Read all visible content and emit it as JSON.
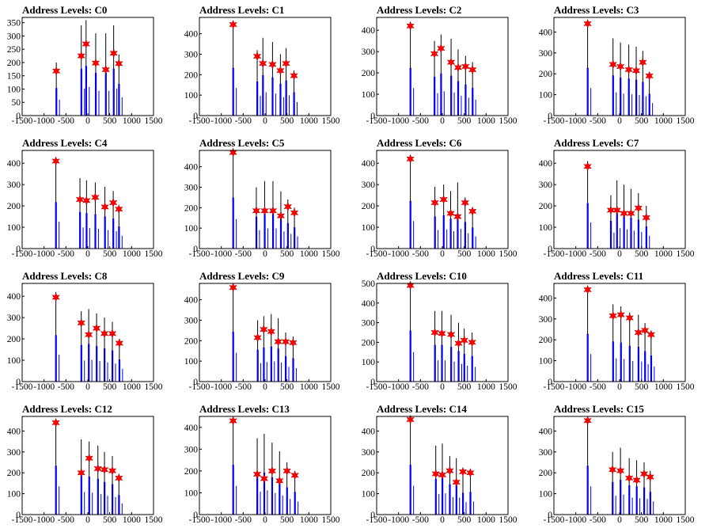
{
  "figure": {
    "background": "#ffffff"
  },
  "chart_data": [
    {
      "type": "bar",
      "title": "Address Levels: C0",
      "xlim": [
        -1500,
        1500
      ],
      "ylim": [
        0,
        370
      ],
      "xticks": [
        -1500,
        -1000,
        -500,
        0,
        500,
        1000,
        1500
      ],
      "yticks": [
        0,
        50,
        100,
        150,
        200,
        250,
        300,
        350
      ],
      "bar_positions": [
        -720,
        -150,
        -40,
        180,
        410,
        590,
        710
      ],
      "bar_heights": [
        200,
        340,
        360,
        310,
        310,
        340,
        230
      ],
      "marker_positions": [
        -720,
        -150,
        -40,
        180,
        410,
        590,
        710
      ],
      "marker_values": [
        168,
        225,
        270,
        198,
        173,
        235,
        196
      ]
    },
    {
      "type": "bar",
      "title": "Address Levels: C1",
      "xlim": [
        -1500,
        1500
      ],
      "ylim": [
        0,
        480
      ],
      "xticks": [
        -1500,
        -1000,
        -500,
        0,
        500,
        1000,
        1500
      ],
      "yticks": [
        0,
        100,
        200,
        300,
        400
      ],
      "bar_positions": [
        -730,
        -180,
        -50,
        170,
        350,
        480,
        660
      ],
      "bar_heights": [
        450,
        320,
        380,
        360,
        300,
        330,
        220
      ],
      "marker_positions": [
        -730,
        -180,
        -50,
        170,
        350,
        480,
        660
      ],
      "marker_values": [
        445,
        290,
        255,
        250,
        220,
        255,
        195
      ]
    },
    {
      "type": "bar",
      "title": "Address Levels: C2",
      "xlim": [
        -1500,
        1500
      ],
      "ylim": [
        0,
        460
      ],
      "xticks": [
        -1500,
        -1000,
        -500,
        0,
        500,
        1000,
        1500
      ],
      "yticks": [
        0,
        100,
        200,
        300,
        400
      ],
      "bar_positions": [
        -730,
        -180,
        -30,
        200,
        360,
        530,
        690
      ],
      "bar_heights": [
        430,
        350,
        380,
        360,
        310,
        280,
        250
      ],
      "marker_positions": [
        -730,
        -180,
        -30,
        200,
        360,
        530,
        690
      ],
      "marker_values": [
        420,
        290,
        315,
        250,
        225,
        230,
        215
      ]
    },
    {
      "type": "bar",
      "title": "Address Levels: C3",
      "xlim": [
        -1500,
        1500
      ],
      "ylim": [
        0,
        470
      ],
      "xticks": [
        -1500,
        -1000,
        -500,
        0,
        500,
        1000,
        1500
      ],
      "yticks": [
        0,
        100,
        200,
        300,
        400
      ],
      "bar_positions": [
        -730,
        -150,
        20,
        210,
        380,
        530,
        680
      ],
      "bar_heights": [
        440,
        370,
        350,
        340,
        330,
        310,
        200
      ],
      "marker_positions": [
        -730,
        -150,
        20,
        210,
        380,
        530,
        680
      ],
      "marker_values": [
        440,
        245,
        235,
        220,
        215,
        255,
        190
      ]
    },
    {
      "type": "bar",
      "title": "Address Levels: C4",
      "xlim": [
        -1500,
        1500
      ],
      "ylim": [
        0,
        460
      ],
      "xticks": [
        -1500,
        -1000,
        -500,
        0,
        500,
        1000,
        1500
      ],
      "yticks": [
        0,
        100,
        200,
        300,
        400
      ],
      "bar_positions": [
        -730,
        -180,
        -30,
        170,
        390,
        580,
        710
      ],
      "bar_heights": [
        420,
        330,
        320,
        310,
        290,
        270,
        200
      ],
      "marker_positions": [
        -730,
        -180,
        -30,
        170,
        390,
        580,
        710
      ],
      "marker_values": [
        410,
        230,
        225,
        240,
        195,
        215,
        185
      ]
    },
    {
      "type": "bar",
      "title": "Address Levels: C5",
      "xlim": [
        -1500,
        1500
      ],
      "ylim": [
        0,
        480
      ],
      "xticks": [
        -1500,
        -1000,
        -500,
        0,
        500,
        1000,
        1500
      ],
      "yticks": [
        0,
        100,
        200,
        300,
        400
      ],
      "bar_positions": [
        -730,
        -200,
        -10,
        180,
        360,
        520,
        670
      ],
      "bar_heights": [
        480,
        300,
        330,
        330,
        280,
        240,
        200
      ],
      "marker_positions": [
        -730,
        -200,
        -10,
        180,
        360,
        520,
        670
      ],
      "marker_values": [
        470,
        185,
        185,
        185,
        160,
        205,
        175
      ]
    },
    {
      "type": "bar",
      "title": "Address Levels: C6",
      "xlim": [
        -1500,
        1500
      ],
      "ylim": [
        0,
        460
      ],
      "xticks": [
        -1500,
        -1000,
        -500,
        0,
        500,
        1000,
        1500
      ],
      "yticks": [
        0,
        100,
        200,
        300,
        400
      ],
      "bar_positions": [
        -730,
        -170,
        30,
        190,
        350,
        520,
        690
      ],
      "bar_heights": [
        430,
        290,
        300,
        270,
        310,
        240,
        190
      ],
      "marker_positions": [
        -730,
        -170,
        30,
        190,
        350,
        520,
        690
      ],
      "marker_values": [
        420,
        215,
        230,
        165,
        150,
        215,
        175
      ]
    },
    {
      "type": "bar",
      "title": "Address Levels: C7",
      "xlim": [
        -1500,
        1500
      ],
      "ylim": [
        0,
        460
      ],
      "xticks": [
        -1500,
        -1000,
        -500,
        0,
        500,
        1000,
        1500
      ],
      "yticks": [
        0,
        100,
        200,
        300,
        400
      ],
      "bar_positions": [
        -730,
        -200,
        -60,
        100,
        260,
        430,
        610
      ],
      "bar_heights": [
        410,
        250,
        320,
        300,
        280,
        260,
        200
      ],
      "marker_positions": [
        -730,
        -200,
        -60,
        100,
        260,
        430,
        610
      ],
      "marker_values": [
        385,
        180,
        180,
        165,
        165,
        190,
        145
      ]
    },
    {
      "type": "bar",
      "title": "Address Levels: C8",
      "xlim": [
        -1500,
        1500
      ],
      "ylim": [
        0,
        460
      ],
      "xticks": [
        -1500,
        -1000,
        -500,
        0,
        500,
        1000,
        1500
      ],
      "yticks": [
        0,
        100,
        200,
        300,
        400
      ],
      "bar_positions": [
        -730,
        -150,
        20,
        200,
        380,
        560,
        720
      ],
      "bar_heights": [
        420,
        330,
        340,
        320,
        300,
        280,
        200
      ],
      "marker_positions": [
        -730,
        -150,
        20,
        200,
        380,
        560,
        720
      ],
      "marker_values": [
        395,
        275,
        220,
        250,
        225,
        225,
        180
      ]
    },
    {
      "type": "bar",
      "title": "Address Levels: C9",
      "xlim": [
        -1500,
        1500
      ],
      "ylim": [
        0,
        480
      ],
      "xticks": [
        -1500,
        -1000,
        -500,
        0,
        500,
        1000,
        1500
      ],
      "yticks": [
        0,
        100,
        200,
        300,
        400
      ],
      "bar_positions": [
        -730,
        -170,
        -30,
        140,
        300,
        470,
        640
      ],
      "bar_heights": [
        470,
        300,
        320,
        330,
        310,
        240,
        220
      ],
      "marker_positions": [
        -730,
        -170,
        -30,
        140,
        300,
        470,
        640
      ],
      "marker_values": [
        460,
        215,
        255,
        245,
        195,
        195,
        190
      ]
    },
    {
      "type": "bar",
      "title": "Address Levels: C10",
      "xlim": [
        -1500,
        1500
      ],
      "ylim": [
        0,
        500
      ],
      "xticks": [
        -1500,
        -1000,
        -500,
        0,
        500,
        1000,
        1500
      ],
      "yticks": [
        0,
        100,
        200,
        300,
        400,
        500
      ],
      "bar_positions": [
        -730,
        -170,
        -10,
        200,
        370,
        500,
        680
      ],
      "bar_heights": [
        500,
        360,
        360,
        340,
        300,
        270,
        250
      ],
      "marker_positions": [
        -730,
        -170,
        -10,
        200,
        370,
        500,
        680
      ],
      "marker_values": [
        490,
        250,
        245,
        240,
        195,
        210,
        200
      ]
    },
    {
      "type": "bar",
      "title": "Address Levels: C11",
      "xlim": [
        -1500,
        1500
      ],
      "ylim": [
        0,
        470
      ],
      "xticks": [
        -1500,
        -1000,
        -500,
        0,
        500,
        1000,
        1500
      ],
      "yticks": [
        0,
        100,
        200,
        300,
        400
      ],
      "bar_positions": [
        -730,
        -150,
        30,
        230,
        430,
        580,
        720
      ],
      "bar_heights": [
        440,
        370,
        360,
        330,
        320,
        280,
        240
      ],
      "marker_positions": [
        -730,
        -150,
        30,
        230,
        430,
        580,
        720
      ],
      "marker_values": [
        440,
        315,
        320,
        305,
        235,
        245,
        225
      ]
    },
    {
      "type": "bar",
      "title": "Address Levels: C12",
      "xlim": [
        -1500,
        1500
      ],
      "ylim": [
        0,
        470
      ],
      "xticks": [
        -1500,
        -1000,
        -500,
        0,
        500,
        1000,
        1500
      ],
      "yticks": [
        0,
        100,
        200,
        300,
        400
      ],
      "bar_positions": [
        -730,
        -150,
        30,
        230,
        380,
        560,
        710
      ],
      "bar_heights": [
        450,
        360,
        350,
        330,
        300,
        280,
        180
      ],
      "marker_positions": [
        -730,
        -150,
        30,
        230,
        380,
        560,
        710
      ],
      "marker_values": [
        440,
        200,
        270,
        220,
        215,
        210,
        175
      ]
    },
    {
      "type": "bar",
      "title": "Address Levels: C13",
      "xlim": [
        -1500,
        1500
      ],
      "ylim": [
        0,
        450
      ],
      "xticks": [
        -1500,
        -1000,
        -500,
        0,
        500,
        1000,
        1500
      ],
      "yticks": [
        0,
        100,
        200,
        300,
        400
      ],
      "bar_positions": [
        -730,
        -180,
        -20,
        160,
        330,
        500,
        680
      ],
      "bar_heights": [
        440,
        350,
        370,
        330,
        290,
        240,
        200
      ],
      "marker_positions": [
        -730,
        -180,
        -20,
        160,
        330,
        500,
        680
      ],
      "marker_values": [
        430,
        185,
        165,
        200,
        155,
        200,
        180
      ]
    },
    {
      "type": "bar",
      "title": "Address Levels: C14",
      "xlim": [
        -1500,
        1500
      ],
      "ylim": [
        0,
        470
      ],
      "xticks": [
        -1500,
        -1000,
        -500,
        0,
        500,
        1000,
        1500
      ],
      "yticks": [
        0,
        100,
        200,
        300,
        400
      ],
      "bar_positions": [
        -730,
        -150,
        0,
        170,
        320,
        470,
        640
      ],
      "bar_heights": [
        460,
        330,
        340,
        280,
        270,
        200,
        210
      ],
      "marker_positions": [
        -730,
        -150,
        0,
        170,
        320,
        470,
        640
      ],
      "marker_values": [
        455,
        195,
        190,
        210,
        155,
        205,
        200
      ]
    },
    {
      "type": "bar",
      "title": "Address Levels: C15",
      "xlim": [
        -1500,
        1500
      ],
      "ylim": [
        0,
        470
      ],
      "xticks": [
        -1500,
        -1000,
        -500,
        0,
        500,
        1000,
        1500
      ],
      "yticks": [
        0,
        100,
        200,
        300,
        400
      ],
      "bar_positions": [
        -730,
        -160,
        20,
        220,
        390,
        560,
        700
      ],
      "bar_heights": [
        450,
        300,
        320,
        270,
        260,
        250,
        210
      ],
      "marker_positions": [
        -730,
        -160,
        20,
        220,
        390,
        560,
        700
      ],
      "marker_values": [
        450,
        215,
        210,
        175,
        165,
        195,
        180
      ]
    }
  ],
  "colors": {
    "bar_black": "#000000",
    "bar_blue": "#0000ee",
    "marker": "#ff0000"
  }
}
